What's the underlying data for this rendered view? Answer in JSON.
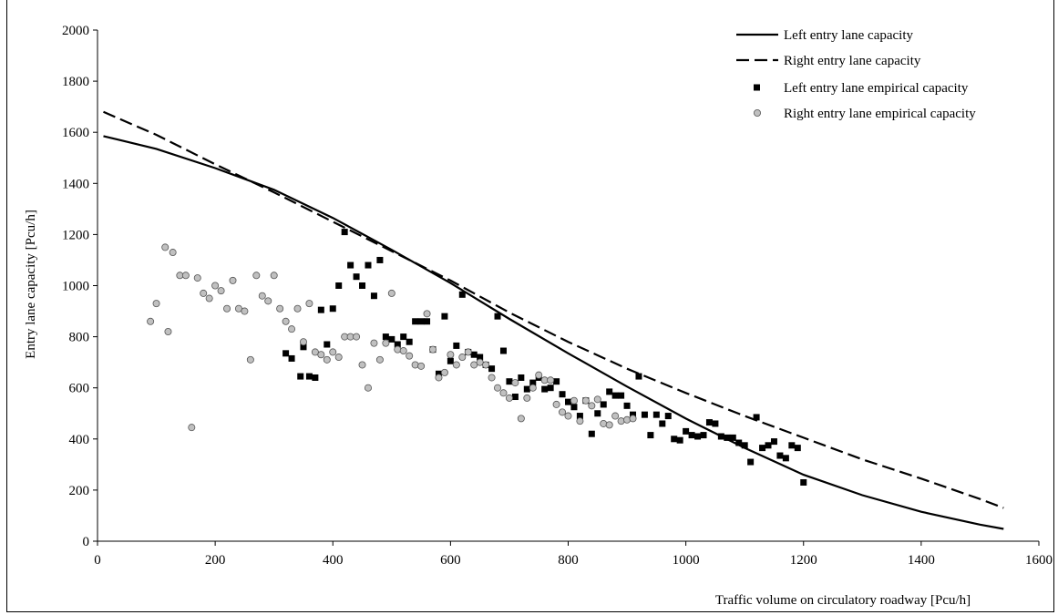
{
  "chart_data": {
    "type": "scatter",
    "title": "",
    "xlabel": "Traffic volume on circulatory roadway [Pcu/h]",
    "ylabel": "Entry lane capacity [Pcu/h]",
    "xlim": [
      0,
      1600
    ],
    "ylim": [
      0,
      2000
    ],
    "x_ticks": [
      "0",
      "200",
      "400",
      "600",
      "800",
      "1000",
      "1200",
      "1400",
      "1600"
    ],
    "y_ticks": [
      "0",
      "200",
      "400",
      "600",
      "800",
      "1000",
      "1200",
      "1400",
      "1600",
      "1800",
      "2000"
    ],
    "grid": false,
    "legend_position": "top-right",
    "series": [
      {
        "name": "Left entry lane capacity",
        "kind": "line",
        "style": "solid",
        "color": "#000000",
        "points": [
          [
            10,
            1585
          ],
          [
            100,
            1535
          ],
          [
            200,
            1460
          ],
          [
            300,
            1375
          ],
          [
            400,
            1265
          ],
          [
            500,
            1140
          ],
          [
            600,
            1010
          ],
          [
            700,
            870
          ],
          [
            800,
            735
          ],
          [
            900,
            605
          ],
          [
            1000,
            480
          ],
          [
            1100,
            365
          ],
          [
            1200,
            260
          ],
          [
            1300,
            180
          ],
          [
            1400,
            115
          ],
          [
            1500,
            65
          ],
          [
            1540,
            48
          ]
        ]
      },
      {
        "name": "Right entry lane capacity",
        "kind": "line",
        "style": "dashed",
        "color": "#000000",
        "points": [
          [
            10,
            1680
          ],
          [
            100,
            1590
          ],
          [
            200,
            1475
          ],
          [
            300,
            1365
          ],
          [
            400,
            1250
          ],
          [
            500,
            1135
          ],
          [
            600,
            1020
          ],
          [
            700,
            895
          ],
          [
            800,
            780
          ],
          [
            900,
            675
          ],
          [
            1000,
            580
          ],
          [
            1100,
            490
          ],
          [
            1200,
            405
          ],
          [
            1300,
            320
          ],
          [
            1400,
            245
          ],
          [
            1500,
            165
          ],
          [
            1540,
            130
          ]
        ]
      },
      {
        "name": "Left entry lane empirical capacity",
        "kind": "scatter",
        "marker": "square",
        "color": "#000000",
        "points": [
          [
            320,
            735
          ],
          [
            330,
            715
          ],
          [
            345,
            645
          ],
          [
            350,
            760
          ],
          [
            360,
            645
          ],
          [
            370,
            640
          ],
          [
            380,
            905
          ],
          [
            390,
            770
          ],
          [
            400,
            910
          ],
          [
            410,
            1000
          ],
          [
            420,
            1210
          ],
          [
            430,
            1080
          ],
          [
            440,
            1035
          ],
          [
            450,
            1000
          ],
          [
            460,
            1080
          ],
          [
            470,
            960
          ],
          [
            480,
            1100
          ],
          [
            490,
            800
          ],
          [
            500,
            790
          ],
          [
            510,
            770
          ],
          [
            520,
            800
          ],
          [
            530,
            780
          ],
          [
            540,
            860
          ],
          [
            550,
            860
          ],
          [
            560,
            860
          ],
          [
            570,
            750
          ],
          [
            580,
            655
          ],
          [
            590,
            880
          ],
          [
            600,
            705
          ],
          [
            610,
            765
          ],
          [
            620,
            965
          ],
          [
            630,
            740
          ],
          [
            640,
            730
          ],
          [
            650,
            720
          ],
          [
            660,
            690
          ],
          [
            670,
            675
          ],
          [
            680,
            880
          ],
          [
            690,
            745
          ],
          [
            700,
            625
          ],
          [
            710,
            565
          ],
          [
            720,
            640
          ],
          [
            730,
            595
          ],
          [
            740,
            620
          ],
          [
            750,
            640
          ],
          [
            760,
            595
          ],
          [
            770,
            600
          ],
          [
            780,
            625
          ],
          [
            790,
            575
          ],
          [
            800,
            545
          ],
          [
            810,
            525
          ],
          [
            820,
            490
          ],
          [
            830,
            550
          ],
          [
            840,
            420
          ],
          [
            850,
            500
          ],
          [
            860,
            535
          ],
          [
            870,
            585
          ],
          [
            880,
            570
          ],
          [
            890,
            570
          ],
          [
            900,
            530
          ],
          [
            910,
            495
          ],
          [
            920,
            645
          ],
          [
            930,
            495
          ],
          [
            940,
            415
          ],
          [
            950,
            495
          ],
          [
            960,
            460
          ],
          [
            970,
            490
          ],
          [
            980,
            400
          ],
          [
            990,
            395
          ],
          [
            1000,
            430
          ],
          [
            1010,
            415
          ],
          [
            1020,
            410
          ],
          [
            1030,
            415
          ],
          [
            1040,
            465
          ],
          [
            1050,
            460
          ],
          [
            1060,
            410
          ],
          [
            1070,
            405
          ],
          [
            1080,
            405
          ],
          [
            1090,
            385
          ],
          [
            1100,
            375
          ],
          [
            1110,
            310
          ],
          [
            1120,
            485
          ],
          [
            1130,
            365
          ],
          [
            1140,
            375
          ],
          [
            1150,
            390
          ],
          [
            1160,
            335
          ],
          [
            1170,
            325
          ],
          [
            1180,
            375
          ],
          [
            1190,
            365
          ],
          [
            1200,
            230
          ]
        ]
      },
      {
        "name": "Right entry lane empirical capacity",
        "kind": "scatter",
        "marker": "circle",
        "color": "#c0c0c0",
        "points": [
          [
            90,
            860
          ],
          [
            100,
            930
          ],
          [
            115,
            1150
          ],
          [
            120,
            820
          ],
          [
            128,
            1130
          ],
          [
            140,
            1040
          ],
          [
            150,
            1040
          ],
          [
            160,
            445
          ],
          [
            170,
            1030
          ],
          [
            180,
            970
          ],
          [
            190,
            950
          ],
          [
            200,
            1000
          ],
          [
            210,
            980
          ],
          [
            220,
            910
          ],
          [
            230,
            1020
          ],
          [
            240,
            910
          ],
          [
            250,
            900
          ],
          [
            260,
            710
          ],
          [
            270,
            1040
          ],
          [
            280,
            960
          ],
          [
            290,
            940
          ],
          [
            300,
            1040
          ],
          [
            310,
            910
          ],
          [
            320,
            860
          ],
          [
            330,
            830
          ],
          [
            340,
            910
          ],
          [
            350,
            780
          ],
          [
            360,
            930
          ],
          [
            370,
            740
          ],
          [
            380,
            730
          ],
          [
            390,
            710
          ],
          [
            400,
            740
          ],
          [
            410,
            720
          ],
          [
            420,
            800
          ],
          [
            430,
            800
          ],
          [
            440,
            800
          ],
          [
            450,
            690
          ],
          [
            460,
            600
          ],
          [
            470,
            775
          ],
          [
            480,
            710
          ],
          [
            490,
            775
          ],
          [
            500,
            970
          ],
          [
            510,
            750
          ],
          [
            520,
            745
          ],
          [
            530,
            725
          ],
          [
            540,
            690
          ],
          [
            550,
            685
          ],
          [
            560,
            890
          ],
          [
            570,
            750
          ],
          [
            580,
            640
          ],
          [
            590,
            660
          ],
          [
            600,
            730
          ],
          [
            610,
            690
          ],
          [
            620,
            720
          ],
          [
            630,
            740
          ],
          [
            640,
            690
          ],
          [
            650,
            700
          ],
          [
            660,
            690
          ],
          [
            670,
            640
          ],
          [
            680,
            600
          ],
          [
            690,
            580
          ],
          [
            700,
            560
          ],
          [
            710,
            620
          ],
          [
            720,
            480
          ],
          [
            730,
            560
          ],
          [
            740,
            600
          ],
          [
            750,
            650
          ],
          [
            760,
            630
          ],
          [
            770,
            630
          ],
          [
            780,
            535
          ],
          [
            790,
            505
          ],
          [
            800,
            490
          ],
          [
            810,
            550
          ],
          [
            820,
            470
          ],
          [
            830,
            550
          ],
          [
            840,
            530
          ],
          [
            850,
            555
          ],
          [
            860,
            460
          ],
          [
            870,
            455
          ],
          [
            880,
            490
          ],
          [
            890,
            470
          ],
          [
            900,
            475
          ],
          [
            910,
            480
          ]
        ]
      }
    ]
  }
}
